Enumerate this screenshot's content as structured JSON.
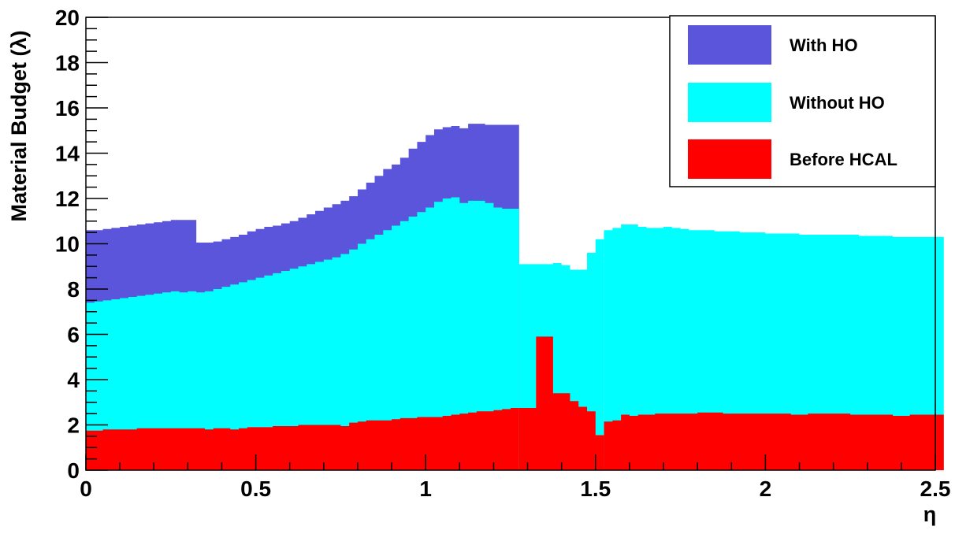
{
  "chart_data": {
    "type": "area",
    "xlabel": "η",
    "ylabel": "Material Budget (λ)",
    "xlim": [
      0,
      2.5
    ],
    "ylim": [
      0,
      20
    ],
    "x_ticks": [
      {
        "v": 0,
        "label": "0"
      },
      {
        "v": 0.5,
        "label": "0.5"
      },
      {
        "v": 1,
        "label": "1"
      },
      {
        "v": 1.5,
        "label": "1.5"
      },
      {
        "v": 2,
        "label": "2"
      },
      {
        "v": 2.5,
        "label": "2.5"
      }
    ],
    "y_ticks": [
      {
        "v": 0,
        "label": "0"
      },
      {
        "v": 2,
        "label": "2"
      },
      {
        "v": 4,
        "label": "4"
      },
      {
        "v": 6,
        "label": "6"
      },
      {
        "v": 8,
        "label": "8"
      },
      {
        "v": 10,
        "label": "10"
      },
      {
        "v": 12,
        "label": "12"
      },
      {
        "v": 14,
        "label": "14"
      },
      {
        "v": 16,
        "label": "16"
      },
      {
        "v": 18,
        "label": "18"
      },
      {
        "v": 20,
        "label": "20"
      }
    ],
    "bin_width": 0.025,
    "legend_position": "top-right",
    "series": [
      {
        "name": "With HO",
        "color": "#5a55db",
        "bins": [
          [
            0.0,
            1.275,
            [
              10.6,
              10.6,
              10.65,
              10.7,
              10.75,
              10.8,
              10.85,
              10.9,
              10.95,
              11.0,
              11.05,
              11.05,
              11.05,
              10.05,
              10.05,
              10.1,
              10.2,
              10.3,
              10.4,
              10.55,
              10.65,
              10.75,
              10.8,
              10.9,
              11.0,
              11.15,
              11.3,
              11.45,
              11.6,
              11.75,
              11.9,
              12.1,
              12.4,
              12.7,
              13.0,
              13.3,
              13.5,
              13.8,
              14.2,
              14.5,
              14.8,
              15.05,
              15.15,
              15.2,
              15.1,
              15.3,
              15.3,
              15.25,
              15.25,
              15.25,
              15.25
            ]
          ]
        ]
      },
      {
        "name": "Without HO",
        "color": "#00ffff",
        "bins": [
          [
            0.0,
            1.275,
            [
              7.4,
              7.45,
              7.5,
              7.55,
              7.6,
              7.65,
              7.7,
              7.75,
              7.8,
              7.85,
              7.9,
              7.85,
              7.9,
              7.85,
              7.9,
              8.0,
              8.1,
              8.2,
              8.3,
              8.4,
              8.5,
              8.6,
              8.7,
              8.8,
              8.9,
              9.0,
              9.1,
              9.2,
              9.3,
              9.4,
              9.55,
              9.75,
              10.0,
              10.2,
              10.4,
              10.6,
              10.8,
              11.0,
              11.2,
              11.4,
              11.6,
              11.85,
              12.0,
              12.05,
              11.8,
              11.9,
              11.9,
              11.8,
              11.6,
              11.55,
              11.55
            ]
          ],
          [
            1.275,
            1.525,
            [
              9.1,
              9.1,
              9.1,
              9.1,
              9.15,
              9.05,
              8.85,
              8.85,
              9.6,
              10.2
            ]
          ],
          [
            1.525,
            2.525,
            [
              10.6,
              10.7,
              10.85,
              10.85,
              10.75,
              10.7,
              10.7,
              10.75,
              10.7,
              10.65,
              10.6,
              10.6,
              10.6,
              10.55,
              10.55,
              10.55,
              10.5,
              10.5,
              10.5,
              10.45,
              10.45,
              10.45,
              10.45,
              10.4,
              10.4,
              10.4,
              10.4,
              10.4,
              10.4,
              10.4,
              10.35,
              10.35,
              10.35,
              10.35,
              10.3,
              10.3,
              10.3,
              10.3,
              10.3,
              10.3
            ]
          ]
        ]
      },
      {
        "name": "Before HCAL",
        "color": "#ff0000",
        "bins": [
          [
            0.0,
            1.275,
            [
              1.75,
              1.75,
              1.8,
              1.8,
              1.8,
              1.8,
              1.85,
              1.85,
              1.85,
              1.85,
              1.85,
              1.85,
              1.85,
              1.85,
              1.8,
              1.85,
              1.85,
              1.8,
              1.85,
              1.9,
              1.9,
              1.9,
              1.95,
              1.95,
              1.95,
              2.0,
              2.0,
              2.0,
              2.0,
              2.0,
              1.95,
              2.1,
              2.15,
              2.2,
              2.2,
              2.2,
              2.25,
              2.3,
              2.3,
              2.35,
              2.35,
              2.35,
              2.4,
              2.45,
              2.5,
              2.55,
              2.6,
              2.6,
              2.65,
              2.7,
              2.75
            ]
          ],
          [
            1.275,
            1.525,
            [
              2.75,
              2.75,
              5.9,
              5.9,
              3.4,
              3.4,
              3.05,
              2.8,
              2.6,
              1.55
            ]
          ],
          [
            1.525,
            2.525,
            [
              2.15,
              2.2,
              2.45,
              2.4,
              2.45,
              2.45,
              2.5,
              2.5,
              2.5,
              2.5,
              2.5,
              2.55,
              2.55,
              2.55,
              2.5,
              2.5,
              2.5,
              2.5,
              2.5,
              2.5,
              2.5,
              2.5,
              2.45,
              2.45,
              2.5,
              2.5,
              2.5,
              2.5,
              2.5,
              2.45,
              2.45,
              2.45,
              2.45,
              2.45,
              2.4,
              2.4,
              2.45,
              2.45,
              2.45,
              2.45
            ]
          ]
        ]
      }
    ]
  }
}
